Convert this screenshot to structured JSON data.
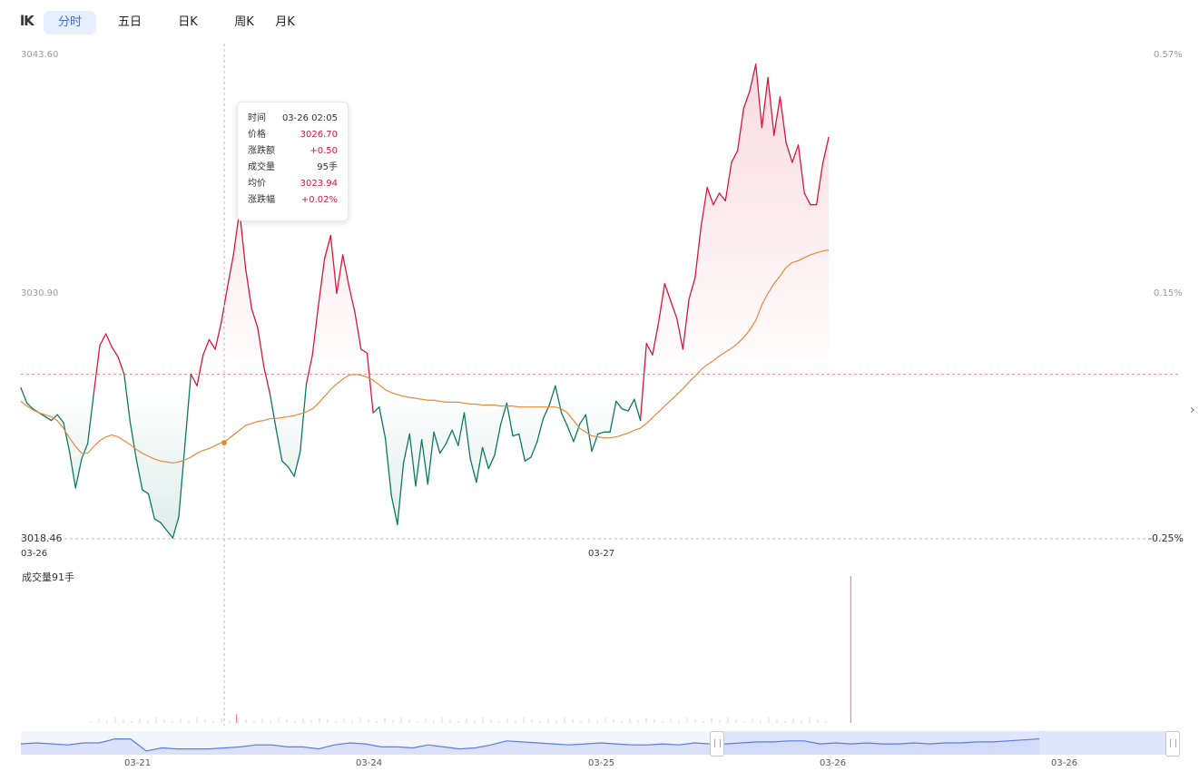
{
  "toolbar": {
    "icon": "candlestick-toggle-icon",
    "icon_text": "lK",
    "tabs": [
      {
        "label": "分时",
        "active": true
      },
      {
        "label": "五日",
        "active": false
      },
      {
        "label": "日K",
        "active": false
      },
      {
        "label": "周K",
        "active": false
      },
      {
        "label": "月K",
        "active": false
      }
    ]
  },
  "axes": {
    "y_left": [
      "3043.60",
      "3030.90",
      "3018.46"
    ],
    "y_right": [
      "0.57%",
      "0.15%",
      "-0.25%"
    ],
    "x_dates": [
      "03-26",
      "03-27"
    ]
  },
  "tooltip": {
    "rows": [
      {
        "key": "时间",
        "value": "03-26 02:05",
        "color": "neutral"
      },
      {
        "key": "价格",
        "value": "3026.70",
        "color": "red"
      },
      {
        "key": "涨跌额",
        "value": "+0.50",
        "color": "red"
      },
      {
        "key": "成交量",
        "value": "95手",
        "color": "neutral"
      },
      {
        "key": "均价",
        "value": "3023.94",
        "color": "red"
      },
      {
        "key": "涨跌幅",
        "value": "+0.02%",
        "color": "red"
      }
    ]
  },
  "volume": {
    "label": "成交量91手"
  },
  "navigator": {
    "dates": [
      "03-21",
      "03-24",
      "03-25",
      "03-26",
      "03-26"
    ]
  },
  "colors": {
    "up": "#d6193a",
    "down": "#0c7a5f",
    "average": "#e8893a",
    "navigator": "#5b7be8",
    "active_tab": "#3a6fd8"
  },
  "chart_data": {
    "type": "line",
    "ylim": [
      3018.46,
      3043.6
    ],
    "reference_price": 3026.2,
    "current_price": 3027.0,
    "y_ticks": [
      3043.6,
      3030.9,
      3018.46
    ],
    "y_ticks_right": [
      "0.57%",
      "0.15%",
      "-0.25%"
    ],
    "x_ticks": [
      "03-26",
      "03-27"
    ],
    "series": [
      {
        "key": "price",
        "values": [
          3026.3,
          3025.5,
          3025.2,
          3025.0,
          3024.8,
          3024.6,
          3024.9,
          3024.5,
          3023.0,
          3021.1,
          3022.6,
          3023.4,
          3026.0,
          3028.5,
          3029.1,
          3028.4,
          3027.9,
          3027.0,
          3024.5,
          3022.6,
          3021.0,
          3020.8,
          3019.5,
          3019.3,
          3018.9,
          3018.5,
          3019.6,
          3023.3,
          3027.0,
          3026.4,
          3028.0,
          3028.8,
          3028.3,
          3029.7,
          3031.5,
          3033.2,
          3035.5,
          3032.5,
          3030.4,
          3029.4,
          3027.4,
          3026.0,
          3024.2,
          3022.5,
          3022.2,
          3021.7,
          3023.0,
          3026.5,
          3028.0,
          3030.6,
          3033.0,
          3034.2,
          3031.2,
          3033.2,
          3031.6,
          3030.2,
          3028.3,
          3028.1,
          3025.0,
          3025.3,
          3023.7,
          3020.7,
          3019.2,
          3022.4,
          3023.9,
          3021.2,
          3023.6,
          3021.3,
          3024.0,
          3022.9,
          3023.4,
          3024.1,
          3023.3,
          3025.0,
          3022.6,
          3021.4,
          3023.2,
          3022.1,
          3022.8,
          3024.4,
          3025.5,
          3023.8,
          3023.9,
          3022.5,
          3022.7,
          3023.5,
          3024.7,
          3025.4,
          3026.4,
          3025.0,
          3024.3,
          3023.5,
          3024.4,
          3024.9,
          3023.0,
          3023.9,
          3024.0,
          3024.0,
          3025.6,
          3025.2,
          3025.1,
          3025.7,
          3024.6,
          3028.6,
          3028.0,
          3029.7,
          3031.7,
          3030.8,
          3029.9,
          3028.3,
          3030.9,
          3032.0,
          3034.7,
          3036.7,
          3035.8,
          3036.4,
          3036.0,
          3038.0,
          3038.6,
          3040.8,
          3041.7,
          3043.1,
          3039.8,
          3042.4,
          3039.4,
          3041.4,
          3039.0,
          3038.0,
          3038.9,
          3036.4,
          3035.8,
          3035.8,
          3037.9,
          3039.3
        ]
      },
      {
        "key": "average",
        "values": [
          3025.6,
          3025.35,
          3025.15,
          3025.0,
          3024.9,
          3024.8,
          3024.6,
          3024.2,
          3023.7,
          3023.25,
          3022.9,
          3022.9,
          3023.25,
          3023.55,
          3023.75,
          3023.85,
          3023.75,
          3023.55,
          3023.35,
          3023.1,
          3022.9,
          3022.75,
          3022.6,
          3022.5,
          3022.45,
          3022.4,
          3022.45,
          3022.55,
          3022.7,
          3022.9,
          3023.05,
          3023.15,
          3023.3,
          3023.45,
          3023.6,
          3023.85,
          3024.1,
          3024.35,
          3024.45,
          3024.55,
          3024.6,
          3024.7,
          3024.7,
          3024.75,
          3024.8,
          3024.85,
          3024.95,
          3025.05,
          3025.2,
          3025.5,
          3025.85,
          3026.2,
          3026.5,
          3026.75,
          3026.95,
          3027.0,
          3026.95,
          3026.85,
          3026.7,
          3026.45,
          3026.2,
          3026.05,
          3025.95,
          3025.85,
          3025.8,
          3025.75,
          3025.7,
          3025.65,
          3025.65,
          3025.6,
          3025.55,
          3025.55,
          3025.55,
          3025.5,
          3025.45,
          3025.45,
          3025.4,
          3025.4,
          3025.4,
          3025.35,
          3025.35,
          3025.35,
          3025.3,
          3025.3,
          3025.3,
          3025.3,
          3025.3,
          3025.3,
          3025.3,
          3025.2,
          3025.0,
          3024.6,
          3024.2,
          3024.0,
          3023.8,
          3023.75,
          3023.7,
          3023.7,
          3023.75,
          3023.85,
          3023.95,
          3024.1,
          3024.2,
          3024.45,
          3024.75,
          3025.05,
          3025.35,
          3025.65,
          3025.95,
          3026.25,
          3026.6,
          3026.9,
          3027.25,
          3027.5,
          3027.7,
          3027.95,
          3028.15,
          3028.35,
          3028.6,
          3028.9,
          3029.3,
          3029.8,
          3030.6,
          3031.2,
          3031.7,
          3032.1,
          3032.55,
          3032.8,
          3032.9,
          3033.05,
          3033.2,
          3033.3,
          3033.4,
          3033.45,
          3033.55
        ]
      }
    ],
    "volume_spikes": [
      {
        "position": 0.186,
        "relative": 0.06
      },
      {
        "position": 0.716,
        "relative": 1.0
      }
    ],
    "navigator_series": [
      0.55,
      0.5,
      0.55,
      0.6,
      0.5,
      0.5,
      0.3,
      0.3,
      0.9,
      0.75,
      0.8,
      0.8,
      0.8,
      0.75,
      0.7,
      0.6,
      0.6,
      0.7,
      0.7,
      0.8,
      0.6,
      0.5,
      0.55,
      0.7,
      0.7,
      0.75,
      0.6,
      0.7,
      0.8,
      0.75,
      0.6,
      0.4,
      0.45,
      0.5,
      0.55,
      0.6,
      0.55,
      0.5,
      0.55,
      0.6,
      0.6,
      0.55,
      0.6,
      0.5,
      0.55,
      0.55,
      0.5,
      0.45,
      0.45,
      0.4,
      0.4,
      0.55,
      0.5,
      0.55,
      0.5,
      0.55,
      0.55,
      0.5,
      0.55,
      0.5,
      0.5,
      0.45,
      0.45,
      0.4,
      0.35,
      0.3
    ],
    "navigator_selection": [
      0.6,
      1.0
    ]
  }
}
